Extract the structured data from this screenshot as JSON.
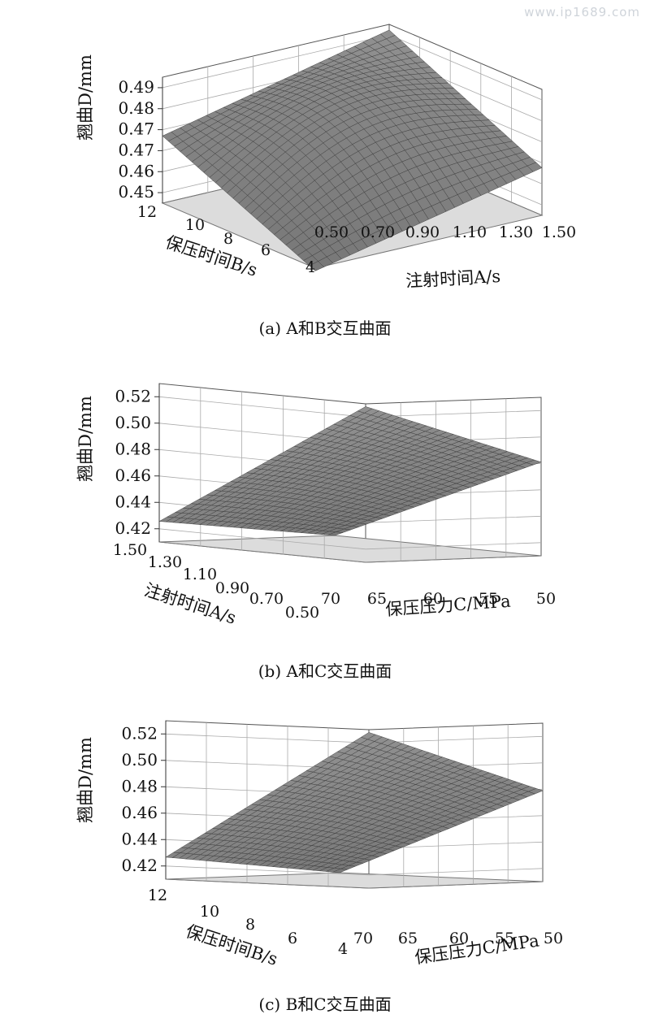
{
  "watermark": "www.ip1689.com",
  "chart_data": [
    {
      "type": "surface",
      "caption": "(a) A和B交互曲面",
      "zlabel": "翘曲D/mm",
      "zticks": [
        "0.45",
        "0.46",
        "0.47",
        "0.47",
        "0.48",
        "0.49"
      ],
      "zlim": [
        0.445,
        0.49
      ],
      "right_axis": {
        "label": "注射时间A/s",
        "ticks": [
          "0.50",
          "0.70",
          "0.90",
          "1.10",
          "1.30",
          "1.50"
        ],
        "range": [
          0.5,
          1.5
        ]
      },
      "left_axis": {
        "label": "保压时间B/s",
        "ticks": [
          "4",
          "6",
          "8",
          "10",
          "12"
        ],
        "range": [
          4,
          12
        ]
      },
      "corners": {
        "front": 0.444,
        "right": 0.462,
        "back": 0.488,
        "left": 0.469
      },
      "peak_bump": 0.012
    },
    {
      "type": "surface",
      "caption": "(b) A和C交互曲面",
      "zlabel": "翘曲D/mm",
      "zticks": [
        "0.42",
        "0.44",
        "0.46",
        "0.48",
        "0.50",
        "0.52"
      ],
      "zlim": [
        0.41,
        0.525
      ],
      "right_axis": {
        "label": "保压压力C/MPa",
        "ticks": [
          "70",
          "65",
          "60",
          "55",
          "50"
        ],
        "range": [
          70,
          50
        ]
      },
      "left_axis": {
        "label": "注射时间A/s",
        "ticks": [
          "0.50",
          "0.70",
          "0.90",
          "1.10",
          "1.30",
          "1.50"
        ],
        "range": [
          0.5,
          1.5
        ]
      },
      "corners": {
        "front": 0.41,
        "right": 0.478,
        "back": 0.523,
        "left": 0.425
      },
      "peak_bump": 0.003
    },
    {
      "type": "surface",
      "caption": "(c) B和C交互曲面",
      "zlabel": "翘曲D/mm",
      "zticks": [
        "0.42",
        "0.44",
        "0.46",
        "0.48",
        "0.50",
        "0.52"
      ],
      "zlim": [
        0.41,
        0.525
      ],
      "right_axis": {
        "label": "保压压力C/MPa",
        "ticks": [
          "70",
          "65",
          "60",
          "55",
          "50"
        ],
        "range": [
          70,
          50
        ]
      },
      "left_axis": {
        "label": "保压时间B/s",
        "ticks": [
          "4",
          "6",
          "8",
          "10",
          "12"
        ],
        "range": [
          4,
          12
        ]
      },
      "corners": {
        "front": 0.41,
        "right": 0.476,
        "back": 0.523,
        "left": 0.426
      },
      "peak_bump": 0.003
    }
  ]
}
